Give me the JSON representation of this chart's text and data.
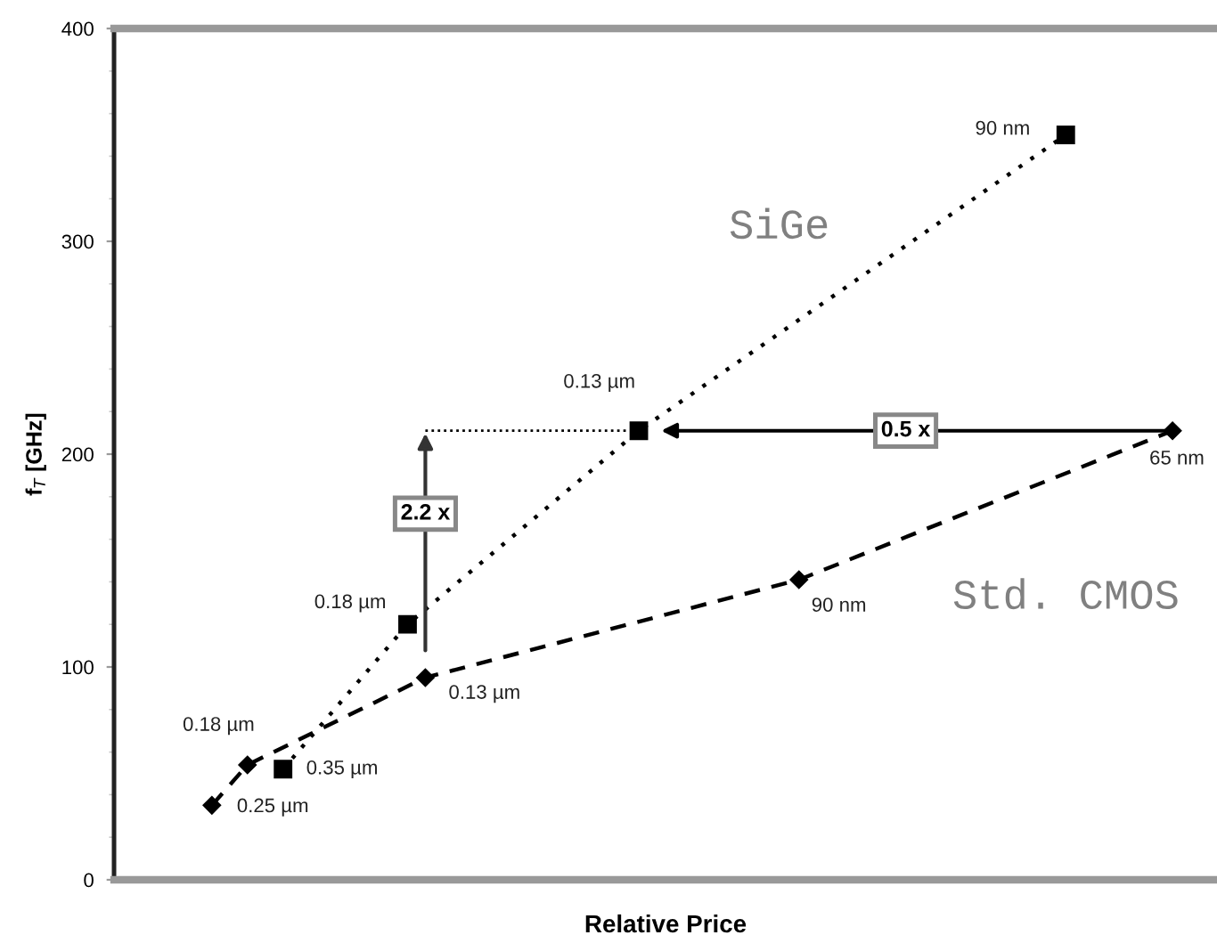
{
  "chart_data": {
    "type": "line",
    "xlabel": "Relative Price",
    "ylabel": "f$_{T}$ [GHz]",
    "ylim": [
      0,
      400
    ],
    "yticks": [
      0,
      {
        "value": 20,
        "label": null
      },
      {
        "value": 40,
        "label": null
      },
      {
        "value": 60,
        "label": null
      },
      {
        "value": 80,
        "label": null
      },
      100,
      {
        "value": 120,
        "label": null
      },
      {
        "value": 140,
        "label": null
      },
      {
        "value": 160,
        "label": null
      },
      {
        "value": 180,
        "label": null
      },
      200,
      {
        "value": 220,
        "label": null
      },
      {
        "value": 240,
        "label": null
      },
      {
        "value": 260,
        "label": null
      },
      {
        "value": 280,
        "label": null
      },
      300,
      {
        "value": 320,
        "label": null
      },
      {
        "value": 340,
        "label": null
      },
      {
        "value": 360,
        "label": null
      },
      {
        "value": 380,
        "label": null
      },
      400
    ],
    "tick_labels": "y",
    "categories": [
      null,
      null,
      null,
      null,
      null,
      null,
      null,
      null,
      null,
      null,
      null,
      null,
      null,
      null,
      null,
      null,
      null,
      null,
      null,
      null,
      null,
      null,
      null,
      null,
      null,
      null,
      null,
      null,
      null,
      null,
      null,
      null,
      null,
      null,
      null,
      null,
      null,
      null,
      null,
      null,
      null,
      null,
      null,
      null,
      null,
      null,
      null,
      null,
      null,
      null,
      null,
      null,
      null,
      null,
      null,
      null,
      null,
      null,
      null,
      null,
      null,
      null
    ],
    "series": [
      {
        "name": "SiGe",
        "color": "#000000",
        "marker": "square",
        "line_style": "dotted",
        "values": [
          null,
          null,
          null,
          null,
          null,
          null,
          null,
          null,
          null,
          52,
          null,
          null,
          null,
          null,
          null,
          null,
          120,
          null,
          null,
          null,
          null,
          null,
          null,
          null,
          null,
          null,
          null,
          null,
          null,
          211,
          null,
          null,
          null,
          null,
          null,
          null,
          null,
          null,
          null,
          null,
          null,
          null,
          null,
          null,
          null,
          null,
          null,
          null,
          null,
          null,
          null,
          null,
          null,
          350,
          null,
          null,
          null,
          null,
          null,
          null,
          null,
          null
        ]
      },
      {
        "name": "Std. CMOS",
        "color": "#000000",
        "marker": "diamond",
        "line_style": "dashed",
        "values": [
          null,
          null,
          null,
          null,
          null,
          35,
          null,
          54,
          null,
          null,
          null,
          null,
          null,
          null,
          null,
          null,
          null,
          95,
          null,
          null,
          null,
          null,
          null,
          null,
          null,
          null,
          null,
          null,
          null,
          null,
          null,
          null,
          null,
          null,
          null,
          null,
          null,
          null,
          141,
          null,
          null,
          null,
          null,
          null,
          null,
          null,
          null,
          null,
          null,
          null,
          null,
          null,
          null,
          null,
          null,
          null,
          null,
          null,
          null,
          211,
          null,
          null
        ]
      }
    ],
    "ref_lines": [
      {
        "axis": "y",
        "value": 211,
        "color": "#000000",
        "line_style": "dotted"
      }
    ],
    "annotations": [
      "0.35 µm",
      "0.18 µm",
      "0.13 µm",
      "90 nm",
      "0.25 µm",
      "0.18 µm",
      "0.13 µm",
      "90 nm",
      "65 nm",
      {
        "text": "2.2 x",
        "y": 172
      },
      {
        "text": "0.5 x",
        "y": 211
      }
    ]
  }
}
